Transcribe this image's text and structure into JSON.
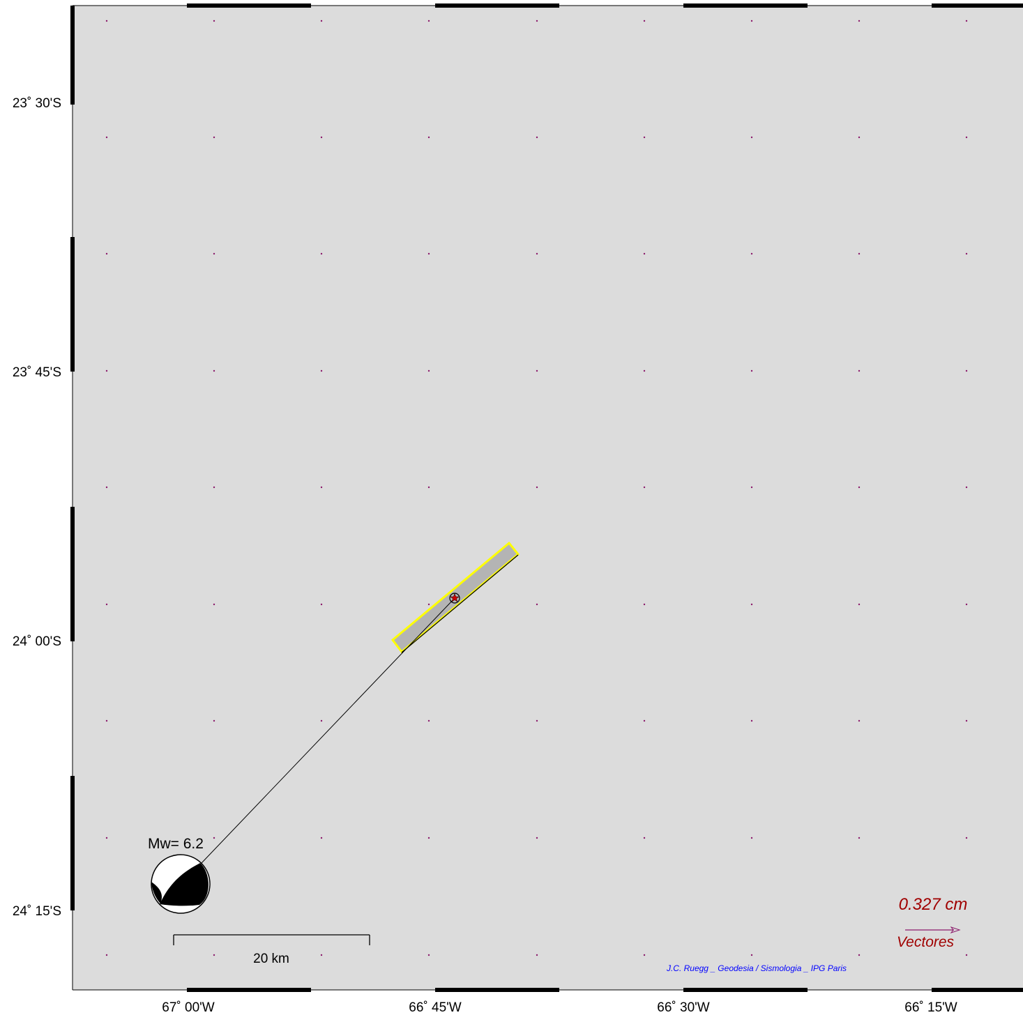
{
  "map": {
    "background_color": "#dcdcdc",
    "grid_dot_color": "#8b1a6b",
    "fault_fill": "#b4b4b4",
    "fault_outline": "#ffff00",
    "epicenter_color": "#cc0000",
    "lon_labels": [
      "67˚ 00'W",
      "66˚ 45'W",
      "66˚ 30'W",
      "66˚ 15'W"
    ],
    "lat_labels": [
      "23˚ 30'S",
      "23˚ 45'S",
      "24˚ 00'S",
      "24˚ 15'S"
    ]
  },
  "focal_mechanism": {
    "label": "Mw= 6.2",
    "icon": "beachball-icon"
  },
  "scale_bar": {
    "label": "20 km"
  },
  "vector_legend": {
    "value": "0.327  cm",
    "label": "Vectores",
    "text_color": "#a00000",
    "arrow_color": "#8b1a6b"
  },
  "credit": {
    "text": "J.C. Ruegg _ Geodesia / Sismologia _ IPG Paris",
    "color": "#0000ff"
  }
}
